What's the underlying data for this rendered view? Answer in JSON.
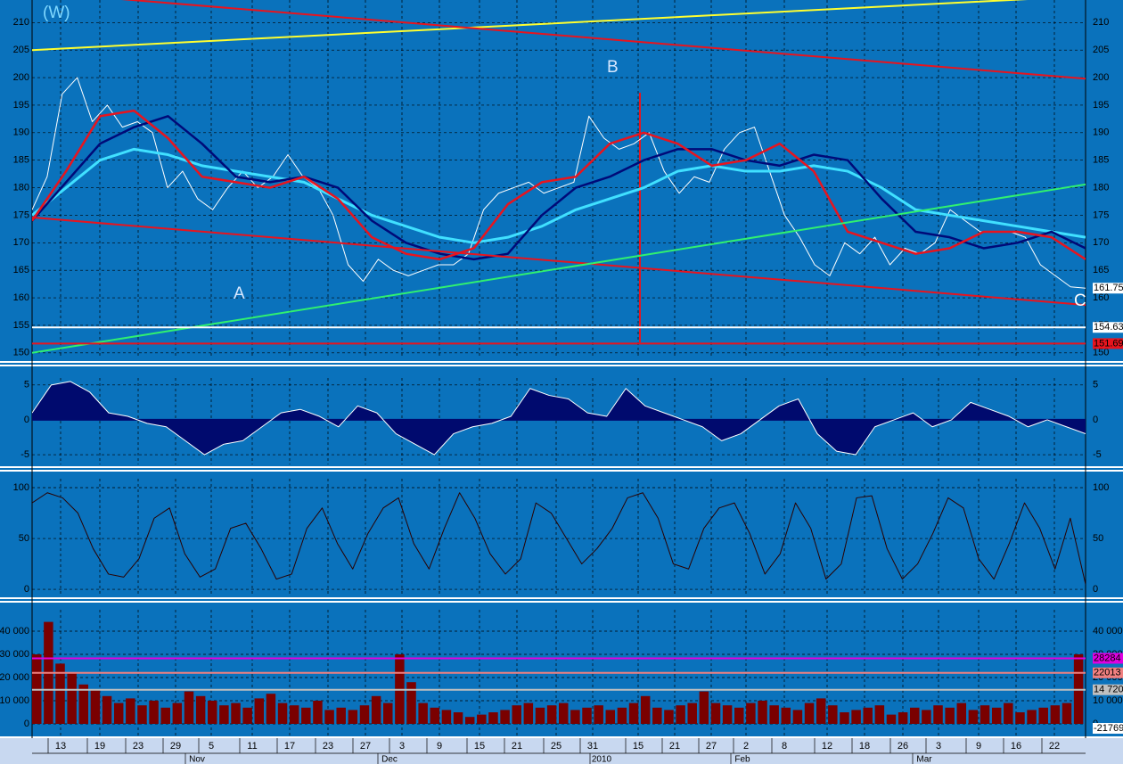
{
  "chart_data": [
    {
      "type": "line",
      "ylim": [
        149,
        214.1
      ],
      "yticks": [
        150,
        155,
        160,
        165,
        170,
        175,
        180,
        185,
        190,
        195,
        200,
        205,
        210
      ],
      "grid": true,
      "series": [
        {
          "color": "#ffffff",
          "width": 1,
          "values": [
            176,
            182,
            197,
            200,
            192,
            195,
            191,
            192,
            190,
            180,
            183,
            178,
            176,
            180,
            183,
            180,
            182,
            186,
            182,
            180,
            175,
            166,
            163,
            167,
            165,
            164,
            165,
            166,
            166,
            168,
            176,
            179,
            180,
            181,
            179,
            180,
            181,
            193,
            189,
            187,
            188,
            190,
            183,
            179,
            182,
            181,
            187,
            190,
            191,
            183,
            175,
            171,
            166,
            164,
            170,
            168,
            171,
            166,
            169,
            168,
            170,
            176,
            174,
            172,
            172,
            172,
            171,
            166,
            164,
            162,
            161.75
          ]
        },
        {
          "color": "#40e0ff",
          "width": 3,
          "values": [
            175,
            180,
            185,
            187,
            186,
            184,
            183,
            182,
            181,
            178,
            175,
            173,
            171,
            170,
            171,
            173,
            176,
            178,
            180,
            183,
            184,
            183,
            183,
            184,
            183,
            180,
            176,
            175,
            174,
            173,
            172,
            171
          ]
        },
        {
          "color": "#000a78",
          "width": 2.5,
          "values": [
            174,
            181,
            188,
            191,
            193,
            188,
            182,
            181,
            182,
            180,
            174,
            170,
            168,
            167,
            168,
            175,
            180,
            182,
            185,
            187,
            187,
            185,
            184,
            186,
            185,
            178,
            172,
            171,
            169,
            170,
            172,
            169
          ]
        },
        {
          "color": "#e8141e",
          "width": 2.5,
          "values": [
            174,
            183,
            193,
            194,
            189,
            182,
            181,
            180,
            182,
            178,
            171,
            168,
            167,
            169,
            177,
            181,
            182,
            188,
            190,
            188,
            184,
            185,
            188,
            183,
            172,
            170,
            168,
            169,
            172,
            172,
            171,
            167
          ]
        },
        {
          "color": "#ffff30",
          "width": 2,
          "values": [
            205,
            214.8
          ]
        },
        {
          "color": "#e8141e",
          "width": 2,
          "values": [
            215.6,
            199.8
          ]
        },
        {
          "color": "#e8141e",
          "width": 2,
          "values": [
            174.6,
            158.7
          ]
        },
        {
          "color": "#30f070",
          "width": 2,
          "values": [
            150,
            180.6
          ]
        },
        {
          "color": "#ffffff",
          "width": 2,
          "values": [
            154.63,
            154.63
          ]
        },
        {
          "color": "#e8141e",
          "width": 2,
          "values": [
            151.69,
            151.69
          ]
        }
      ],
      "price_tags": [
        {
          "value": 161.75,
          "color": "#ffffff"
        },
        {
          "value": 154.63,
          "color": "#ffffff"
        },
        {
          "value": 151.69,
          "color": "#e8141e"
        }
      ],
      "annotations": [
        "(W)",
        "A",
        "B",
        "C"
      ]
    },
    {
      "type": "area",
      "ylim": [
        -6.4,
        6.0
      ],
      "yticks": [
        -5,
        0,
        5
      ],
      "grid": true,
      "color": "#000a6e",
      "values": [
        1,
        5,
        5.5,
        4,
        1,
        0.5,
        -0.5,
        -1,
        -3,
        -5,
        -3.5,
        -3,
        -1,
        1,
        1.5,
        0.5,
        -1,
        2,
        1,
        -2,
        -3.5,
        -5,
        -2,
        -1,
        -0.5,
        0.5,
        4.5,
        3.5,
        3,
        1,
        0.5,
        4.5,
        2,
        1,
        0,
        -1,
        -3,
        -2,
        0,
        2,
        3,
        -2,
        -4.5,
        -5,
        -1,
        0,
        1,
        -1,
        0,
        2.5,
        1.5,
        0.5,
        -1,
        0,
        -1,
        -2
      ]
    },
    {
      "type": "line",
      "ylim": [
        -6.1,
        108.8
      ],
      "yticks": [
        0,
        50,
        100
      ],
      "grid": true,
      "series": [
        {
          "color": "#2a0000",
          "width": 1,
          "values": [
            85,
            95,
            90,
            75,
            40,
            15,
            12,
            30,
            70,
            80,
            35,
            12,
            20,
            60,
            65,
            40,
            10,
            15,
            60,
            80,
            45,
            20,
            55,
            80,
            90,
            45,
            20,
            60,
            95,
            70,
            35,
            15,
            30,
            85,
            75,
            50,
            25,
            40,
            60,
            90,
            95,
            70,
            25,
            20,
            60,
            80,
            85,
            55,
            15,
            35,
            85,
            60,
            10,
            25,
            90,
            92,
            40,
            10,
            25,
            55,
            90,
            80,
            30,
            10,
            45,
            85,
            60,
            20,
            70,
            5
          ]
        }
      ]
    },
    {
      "type": "bar",
      "ylim": [
        -5385,
        49231
      ],
      "grid": true,
      "color": "#7a0000",
      "yticks": [
        0,
        {
          "value": 10000,
          "label": "10 000"
        },
        {
          "value": 20000,
          "label": "20 000"
        },
        {
          "value": 30000,
          "label": "30 000"
        },
        {
          "value": 40000,
          "label": "40 000"
        }
      ],
      "values": [
        30000,
        44000,
        26000,
        22000,
        17000,
        15000,
        12000,
        9000,
        11000,
        8000,
        10000,
        7000,
        9000,
        14000,
        12000,
        10000,
        8000,
        9000,
        7000,
        11000,
        13000,
        9000,
        8000,
        7000,
        10000,
        6000,
        7000,
        6000,
        8000,
        12000,
        9000,
        30000,
        18000,
        9000,
        7000,
        6000,
        5000,
        3000,
        4000,
        5000,
        6000,
        8000,
        9000,
        7000,
        8000,
        9000,
        6000,
        7000,
        8000,
        6000,
        7000,
        9000,
        12000,
        7000,
        6000,
        8000,
        9000,
        14000,
        9000,
        8000,
        7000,
        9000,
        10000,
        8000,
        7000,
        6000,
        9000,
        11000,
        8000,
        5000,
        6000,
        7000,
        8000,
        4000,
        5000,
        7000,
        6000,
        8000,
        7000,
        9000,
        6000,
        8000,
        7000,
        9000,
        5000,
        6000,
        7000,
        8000,
        9000,
        30000
      ],
      "levels": [
        {
          "value": 28284,
          "color": "#e000e0"
        },
        {
          "value": 22013,
          "color": "#f08080"
        },
        {
          "value": 14720,
          "label": "14 720",
          "color": "#c0c0c0"
        }
      ],
      "bottom_tag": "-21769"
    }
  ],
  "time_axis": {
    "days": [
      "13",
      "19",
      "23",
      "29",
      "5",
      "11",
      "17",
      "23",
      "27",
      "3",
      "9",
      "15",
      "21",
      "25",
      "31",
      "15",
      "21",
      "27",
      "2",
      "8",
      "12",
      "18",
      "26",
      "3",
      "9",
      "16",
      "22"
    ],
    "months": [
      "Nov",
      "Dec",
      "2010",
      "Feb",
      "Mar"
    ]
  }
}
